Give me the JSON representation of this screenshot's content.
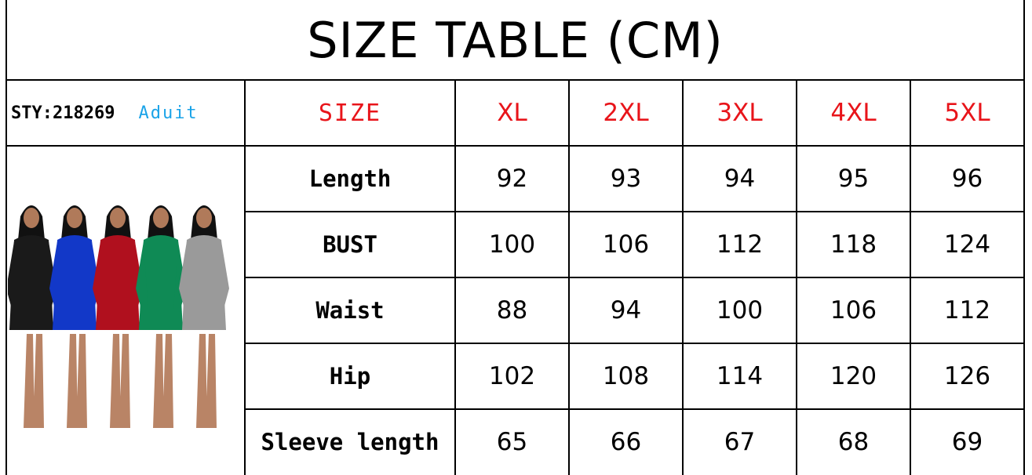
{
  "title": "SIZE TABLE (CM)",
  "style_code": "STY:218269",
  "audience": "Aduit",
  "header": {
    "label": "SIZE",
    "sizes": [
      "XL",
      "2XL",
      "3XL",
      "4XL",
      "5XL"
    ]
  },
  "rows": [
    {
      "label": "Length",
      "values": [
        "92",
        "93",
        "94",
        "95",
        "96"
      ]
    },
    {
      "label": "BUST",
      "values": [
        "100",
        "106",
        "112",
        "118",
        "124"
      ]
    },
    {
      "label": "Waist",
      "values": [
        "88",
        "94",
        "100",
        "106",
        "112"
      ]
    },
    {
      "label": "Hip",
      "values": [
        "102",
        "108",
        "114",
        "120",
        "126"
      ]
    },
    {
      "label": "Sleeve length",
      "values": [
        "65",
        "66",
        "67",
        "68",
        "69"
      ]
    }
  ],
  "colors": {
    "size_text": "#e8141a",
    "audience_text": "#1aa3e8",
    "dress_colors": [
      "#1a1a1a",
      "#1238c8",
      "#b0101e",
      "#0f8a55",
      "#9a9a9a"
    ]
  },
  "image": {
    "subject": "five models in sequin long-sleeve rompers"
  }
}
